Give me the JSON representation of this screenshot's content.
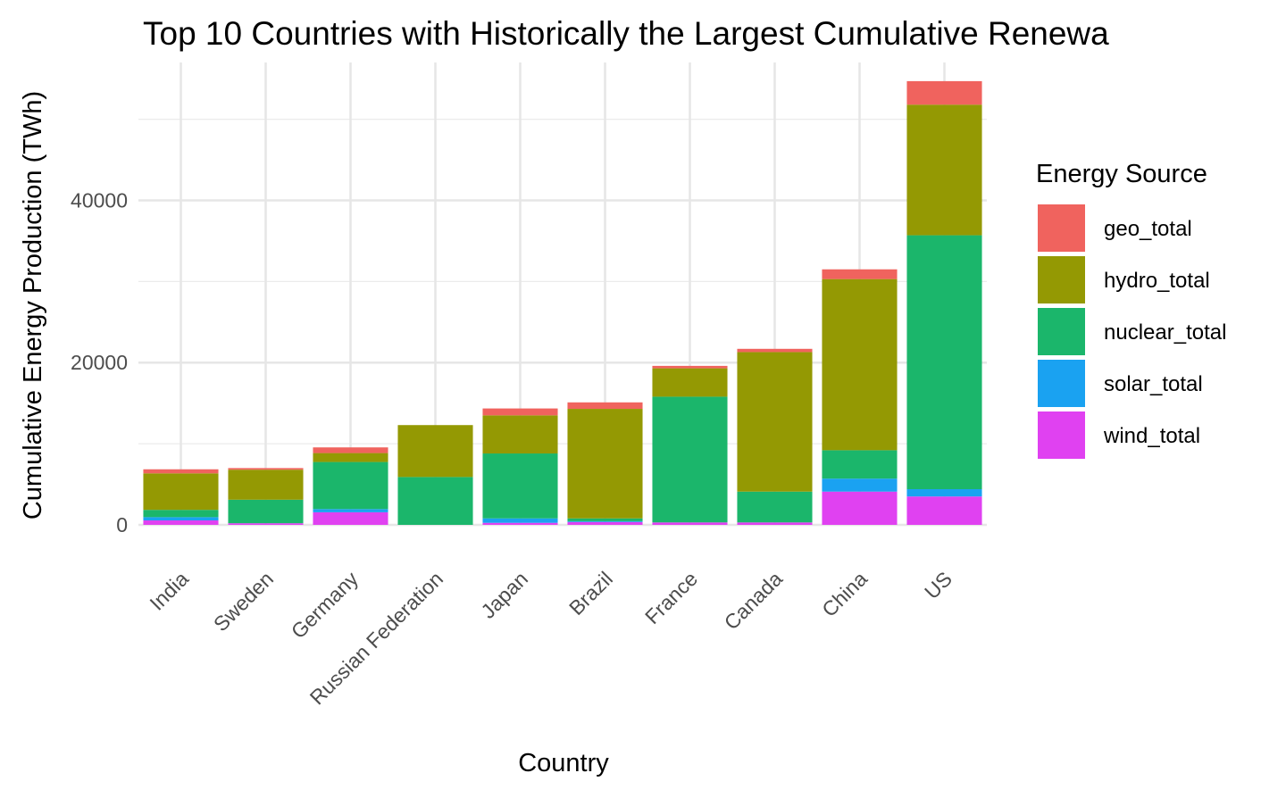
{
  "chart_data": {
    "type": "bar",
    "stacked": true,
    "title": "Top 10 Countries with Historically the Largest Cumulative Renewa",
    "xlabel": "Country",
    "ylabel": "Cumulative Energy Production (TWh)",
    "ylim": [
      0,
      57000
    ],
    "yticks": [
      0,
      20000,
      40000
    ],
    "grid": true,
    "legend_title": "Energy Source",
    "legend_position": "right",
    "categories": [
      "India",
      "Sweden",
      "Germany",
      "Russian Federation",
      "Japan",
      "Brazil",
      "France",
      "Canada",
      "China",
      "US"
    ],
    "series": [
      {
        "name": "wind_total",
        "color": "#E041F1",
        "values": [
          550,
          200,
          1550,
          0,
          250,
          350,
          300,
          300,
          4100,
          3500
        ]
      },
      {
        "name": "solar_total",
        "color": "#1AA2F1",
        "values": [
          400,
          0,
          400,
          0,
          550,
          100,
          0,
          0,
          1600,
          900
        ]
      },
      {
        "name": "nuclear_total",
        "color": "#1BB66B",
        "values": [
          900,
          2900,
          5800,
          5900,
          8000,
          350,
          15500,
          3800,
          3500,
          31300
        ]
      },
      {
        "name": "hydro_total",
        "color": "#949903",
        "values": [
          4500,
          3700,
          1100,
          6400,
          4700,
          13500,
          3500,
          17200,
          21100,
          16100
        ]
      },
      {
        "name": "geo_total",
        "color": "#F0635E",
        "values": [
          500,
          200,
          700,
          0,
          850,
          800,
          300,
          400,
          1200,
          2900
        ]
      }
    ],
    "legend_order": [
      "geo_total",
      "hydro_total",
      "nuclear_total",
      "solar_total",
      "wind_total"
    ]
  }
}
